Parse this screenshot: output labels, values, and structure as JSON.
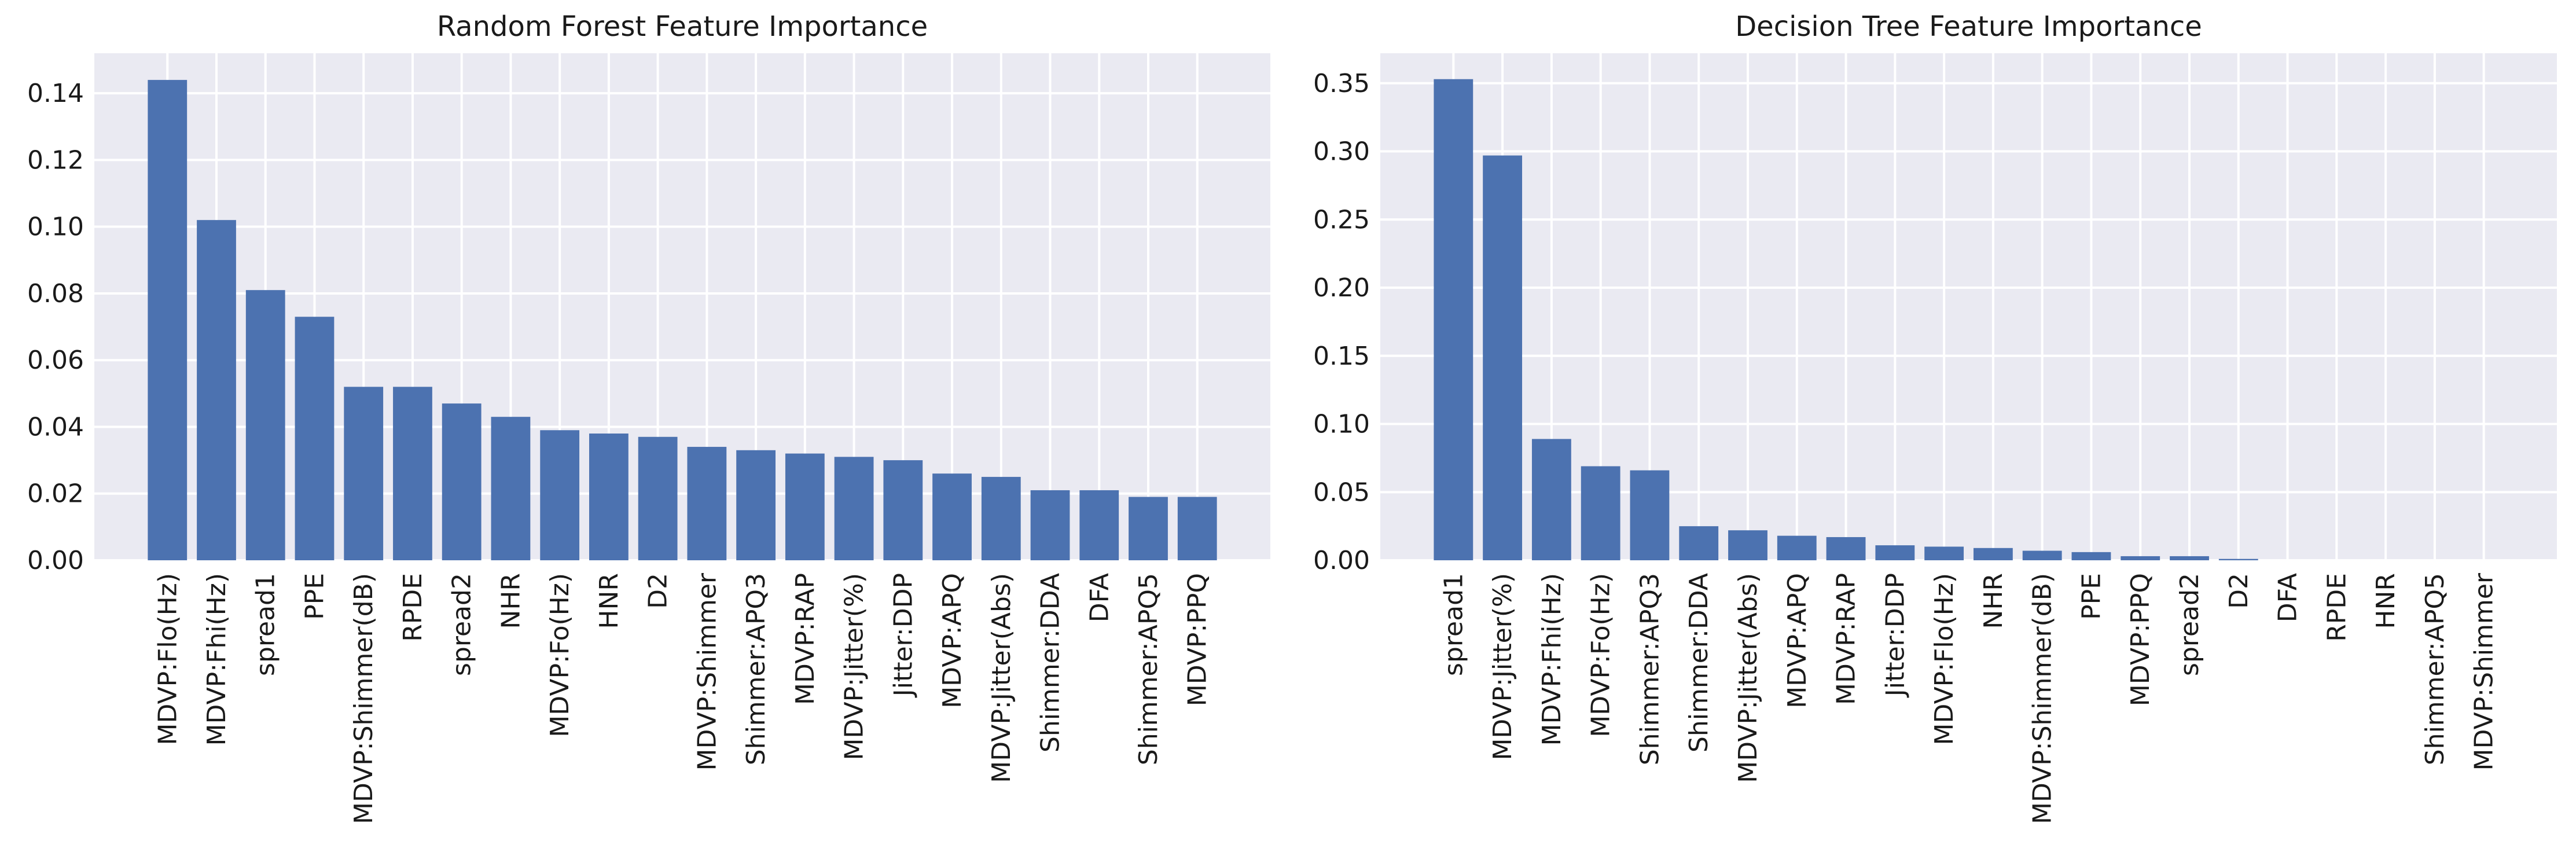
{
  "chart_data": [
    {
      "type": "bar",
      "title": "Random Forest Feature Importance",
      "xlabel": "",
      "ylabel": "",
      "ylim": [
        0,
        0.152
      ],
      "yticks": [
        0.0,
        0.02,
        0.04,
        0.06,
        0.08,
        0.1,
        0.12,
        0.14
      ],
      "ytick_labels": [
        "0.00",
        "0.02",
        "0.04",
        "0.06",
        "0.08",
        "0.10",
        "0.12",
        "0.14"
      ],
      "grid": true,
      "bar_color": "#4c72b0",
      "categories": [
        "MDVP:Flo(Hz)",
        "MDVP:Fhi(Hz)",
        "spread1",
        "PPE",
        "MDVP:Shimmer(dB)",
        "RPDE",
        "spread2",
        "NHR",
        "MDVP:Fo(Hz)",
        "HNR",
        "D2",
        "MDVP:Shimmer",
        "Shimmer:APQ3",
        "MDVP:RAP",
        "MDVP:Jitter(%)",
        "Jitter:DDP",
        "MDVP:APQ",
        "MDVP:Jitter(Abs)",
        "Shimmer:DDA",
        "DFA",
        "Shimmer:APQ5",
        "MDVP:PPQ"
      ],
      "values": [
        0.144,
        0.102,
        0.081,
        0.073,
        0.052,
        0.052,
        0.047,
        0.043,
        0.039,
        0.038,
        0.037,
        0.034,
        0.033,
        0.032,
        0.031,
        0.03,
        0.026,
        0.025,
        0.021,
        0.021,
        0.019,
        0.019
      ]
    },
    {
      "type": "bar",
      "title": "Decision Tree Feature Importance",
      "xlabel": "",
      "ylabel": "",
      "ylim": [
        0,
        0.372
      ],
      "yticks": [
        0.0,
        0.05,
        0.1,
        0.15,
        0.2,
        0.25,
        0.3,
        0.35
      ],
      "ytick_labels": [
        "0.00",
        "0.05",
        "0.10",
        "0.15",
        "0.20",
        "0.25",
        "0.30",
        "0.35"
      ],
      "grid": true,
      "bar_color": "#4c72b0",
      "categories": [
        "spread1",
        "MDVP:Jitter(%)",
        "MDVP:Fhi(Hz)",
        "MDVP:Fo(Hz)",
        "Shimmer:APQ3",
        "Shimmer:DDA",
        "MDVP:Jitter(Abs)",
        "MDVP:APQ",
        "MDVP:RAP",
        "Jitter:DDP",
        "MDVP:Flo(Hz)",
        "NHR",
        "MDVP:Shimmer(dB)",
        "PPE",
        "MDVP:PPQ",
        "spread2",
        "D2",
        "DFA",
        "RPDE",
        "HNR",
        "Shimmer:APQ5",
        "MDVP:Shimmer"
      ],
      "values": [
        0.353,
        0.297,
        0.089,
        0.069,
        0.066,
        0.025,
        0.022,
        0.018,
        0.017,
        0.011,
        0.01,
        0.009,
        0.007,
        0.006,
        0.003,
        0.003,
        0.001,
        0.0,
        0.0,
        0.0,
        0.0,
        0.0
      ]
    }
  ]
}
